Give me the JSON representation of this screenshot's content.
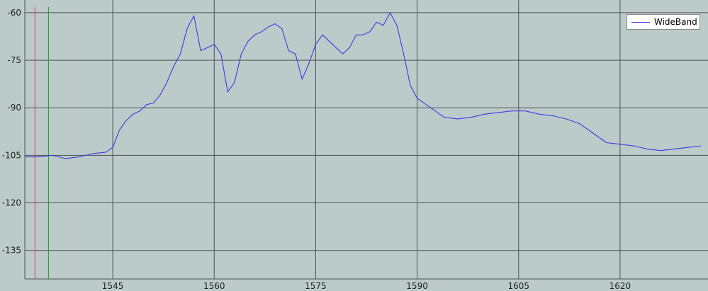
{
  "chart_data": {
    "type": "line",
    "title": "",
    "xlabel": "",
    "ylabel": "",
    "xlim": [
      1532,
      1633
    ],
    "ylim": [
      -144,
      -56
    ],
    "x_ticks": [
      1545,
      1560,
      1575,
      1590,
      1605,
      1620
    ],
    "x_tick_labels": [
      "1545",
      "1560",
      "1575",
      "1590",
      "1605",
      "1620"
    ],
    "y_ticks": [
      -60,
      -75,
      -90,
      -105,
      -120,
      -135
    ],
    "y_tick_labels": [
      "-60",
      "-75",
      "-90",
      "-105",
      "-120",
      "-135"
    ],
    "grid": true,
    "legend_position": "top-right",
    "markers": [
      {
        "x": 1533.5,
        "color": "#e04040"
      },
      {
        "x": 1535.5,
        "color": "#2a9a2a"
      }
    ],
    "series": [
      {
        "name": "WideBand",
        "color": "#3a3adf",
        "x": [
          1532,
          1534,
          1536,
          1538,
          1540,
          1542,
          1544,
          1545,
          1546,
          1547,
          1548,
          1549,
          1550,
          1551,
          1552,
          1553,
          1554,
          1555,
          1556,
          1557,
          1558,
          1559,
          1560,
          1561,
          1562,
          1563,
          1564,
          1565,
          1566,
          1567,
          1568,
          1569,
          1570,
          1571,
          1572,
          1573,
          1574,
          1575,
          1576,
          1577,
          1578,
          1579,
          1580,
          1581,
          1582,
          1583,
          1584,
          1585,
          1586,
          1587,
          1588,
          1589,
          1590,
          1592,
          1594,
          1596,
          1598,
          1600,
          1602,
          1604,
          1606,
          1608,
          1610,
          1612,
          1614,
          1616,
          1618,
          1620,
          1622,
          1624,
          1626,
          1628,
          1630,
          1632
        ],
        "y": [
          -105.5,
          -105.5,
          -105,
          -106,
          -105.5,
          -104.5,
          -104,
          -102.5,
          -97,
          -94,
          -92,
          -91,
          -89,
          -88.5,
          -86,
          -82,
          -77,
          -73,
          -65,
          -61,
          -72,
          -71,
          -70,
          -73,
          -85,
          -82,
          -73,
          -69,
          -67,
          -66,
          -64.5,
          -63.5,
          -65,
          -72,
          -73,
          -81,
          -76,
          -70,
          -67,
          -69,
          -71,
          -73,
          -71,
          -67,
          -67,
          -66,
          -63,
          -64,
          -60,
          -64,
          -73,
          -83,
          -87,
          -90,
          -93,
          -93.5,
          -93,
          -92,
          -91.5,
          -91,
          -91,
          -92,
          -92.5,
          -93.5,
          -95,
          -98,
          -101,
          -101.5,
          -102,
          -103,
          -103.5,
          -103,
          -102.5,
          -102
        ]
      }
    ]
  }
}
